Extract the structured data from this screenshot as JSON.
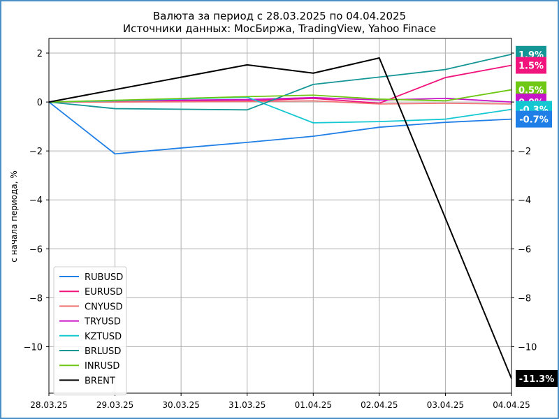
{
  "chart_data": {
    "type": "line",
    "title": "Валюта за период с 28.03.2025 по 04.04.2025",
    "subtitle": "Источники данных: МосБиржа, TradingView, Yahoo Finace",
    "ylabel": "с начала периода, %",
    "xlabel": "",
    "x": [
      "28.03.25",
      "29.03.25",
      "30.03.25",
      "31.03.25",
      "01.04.25",
      "02.04.25",
      "03.04.25",
      "04.04.25"
    ],
    "ylim": [
      -11.9,
      2.6
    ],
    "yticks": [
      2,
      0,
      -2,
      -4,
      -6,
      -8,
      -10
    ],
    "ytick_labels": [
      "2",
      "0",
      "−2",
      "−4",
      "−6",
      "−8",
      "−10"
    ],
    "grid": true,
    "legend_position": "lower-left",
    "series": [
      {
        "name": "RUBUSD",
        "color": "#1f7fe6",
        "x": [
          0,
          1,
          2,
          3,
          4,
          5,
          6,
          7
        ],
        "values": [
          0,
          -2.12,
          -1.88,
          -1.65,
          -1.4,
          -1.03,
          -0.83,
          -0.7
        ]
      },
      {
        "name": "EURUSD",
        "color": "#f0147c",
        "x": [
          0,
          1,
          3,
          4,
          5,
          6,
          7
        ],
        "values": [
          0,
          0.02,
          0.05,
          0.15,
          -0.05,
          1.0,
          1.5
        ]
      },
      {
        "name": "CNYUSD",
        "color": "#f07474",
        "x": [
          0,
          1,
          3,
          4,
          5,
          6,
          7
        ],
        "values": [
          0,
          0.0,
          0.02,
          0.05,
          -0.08,
          -0.05,
          -0.08
        ]
      },
      {
        "name": "TRYUSD",
        "color": "#c814c8",
        "x": [
          0,
          1,
          3,
          4,
          5,
          6,
          7
        ],
        "values": [
          0,
          0.05,
          0.1,
          0.18,
          0.08,
          0.15,
          0.0
        ]
      },
      {
        "name": "KZTUSD",
        "color": "#14c8d2",
        "x": [
          0,
          1,
          3,
          4,
          5,
          6,
          7
        ],
        "values": [
          0,
          0.05,
          0.2,
          -0.85,
          -0.8,
          -0.7,
          -0.3
        ]
      },
      {
        "name": "BRLUSD",
        "color": "#149696",
        "x": [
          0,
          1,
          3,
          4,
          5,
          6,
          7
        ],
        "values": [
          0,
          -0.27,
          -0.32,
          0.72,
          1.02,
          1.33,
          1.95
        ]
      },
      {
        "name": "INRUSD",
        "color": "#6ec814",
        "x": [
          0,
          1,
          3,
          4,
          5,
          6,
          7
        ],
        "values": [
          0,
          0.07,
          0.22,
          0.28,
          0.12,
          0.05,
          0.5
        ]
      },
      {
        "name": "BRENT",
        "color": "#000000",
        "x": [
          0,
          3,
          4,
          5,
          7
        ],
        "values": [
          0,
          1.52,
          1.18,
          1.8,
          -11.3
        ]
      }
    ],
    "end_labels": [
      {
        "series": "BRLUSD",
        "text": "1.9%",
        "color": "#149696"
      },
      {
        "series": "EURUSD",
        "text": "1.5%",
        "color": "#f0147c"
      },
      {
        "series": "INRUSD",
        "text": "0.5%",
        "color": "#6ec814"
      },
      {
        "series": "TRYUSD",
        "text": "0.0%",
        "color": "#c814c8"
      },
      {
        "series": "KZTUSD",
        "text": "-0.3%",
        "color": "#14c8d2"
      },
      {
        "series": "RUBUSD",
        "text": "-0.7%",
        "color": "#1f7fe6"
      },
      {
        "series": "BRENT",
        "text": "-11.3%",
        "color": "#000000"
      }
    ]
  }
}
